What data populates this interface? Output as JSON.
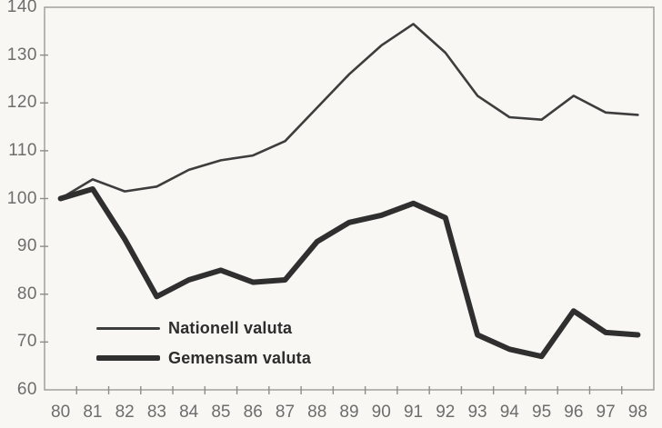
{
  "chart_data": {
    "type": "line",
    "title": "",
    "xlabel": "",
    "ylabel": "",
    "categories": [
      "80",
      "81",
      "82",
      "83",
      "84",
      "85",
      "86",
      "87",
      "88",
      "89",
      "90",
      "91",
      "92",
      "93",
      "94",
      "95",
      "96",
      "97",
      "98"
    ],
    "series": [
      {
        "name": "Nationell valuta",
        "values": [
          100,
          104,
          101.5,
          102.5,
          106,
          108,
          109,
          112,
          119,
          126,
          132,
          136.5,
          130.5,
          121.5,
          117,
          116.5,
          121.5,
          118,
          117.5
        ],
        "color": "#3d3d3d",
        "stroke_width": 2.6,
        "style": "thin"
      },
      {
        "name": "Gemensam valuta",
        "values": [
          100,
          102,
          91.5,
          79.5,
          83,
          85,
          82.5,
          83,
          91,
          95,
          96.5,
          99,
          96,
          71.5,
          68.5,
          67,
          76.5,
          72,
          71.5
        ],
        "color": "#2f2f2f",
        "stroke_width": 6,
        "style": "thick"
      }
    ],
    "ylim": [
      60,
      140
    ],
    "yticks": [
      60,
      70,
      80,
      90,
      100,
      110,
      120,
      130,
      140
    ],
    "grid": false,
    "legend_position": "inside-lower-left",
    "axis_color": "#9c9a96",
    "tick_color": "#8f8d89",
    "label_color": "#6d6d6d"
  }
}
